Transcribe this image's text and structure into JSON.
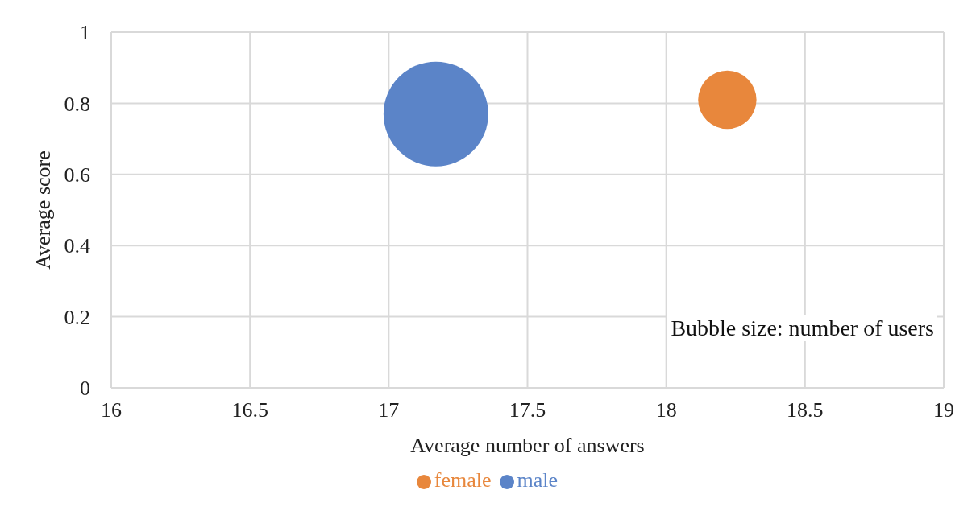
{
  "chart_data": {
    "type": "bubble",
    "xlabel": "Average number of answers",
    "ylabel": "Average score",
    "xlim": [
      16,
      19
    ],
    "xticks": [
      16,
      16.5,
      17,
      17.5,
      18,
      18.5,
      19
    ],
    "ylim": [
      0,
      1
    ],
    "yticks": [
      0,
      0.2,
      0.4,
      0.6,
      0.8,
      1
    ],
    "series": [
      {
        "name": "male",
        "color": "#5b84c8",
        "x": [
          17.17
        ],
        "values": [
          0.77
        ],
        "sizes": [
          1
        ]
      },
      {
        "name": "female",
        "color": "#e8873c",
        "x": [
          18.22
        ],
        "values": [
          0.81
        ],
        "sizes": [
          0.31
        ]
      }
    ],
    "annotations": [
      "Bubble size: number of users"
    ],
    "grid": true,
    "legend": "bottom"
  }
}
